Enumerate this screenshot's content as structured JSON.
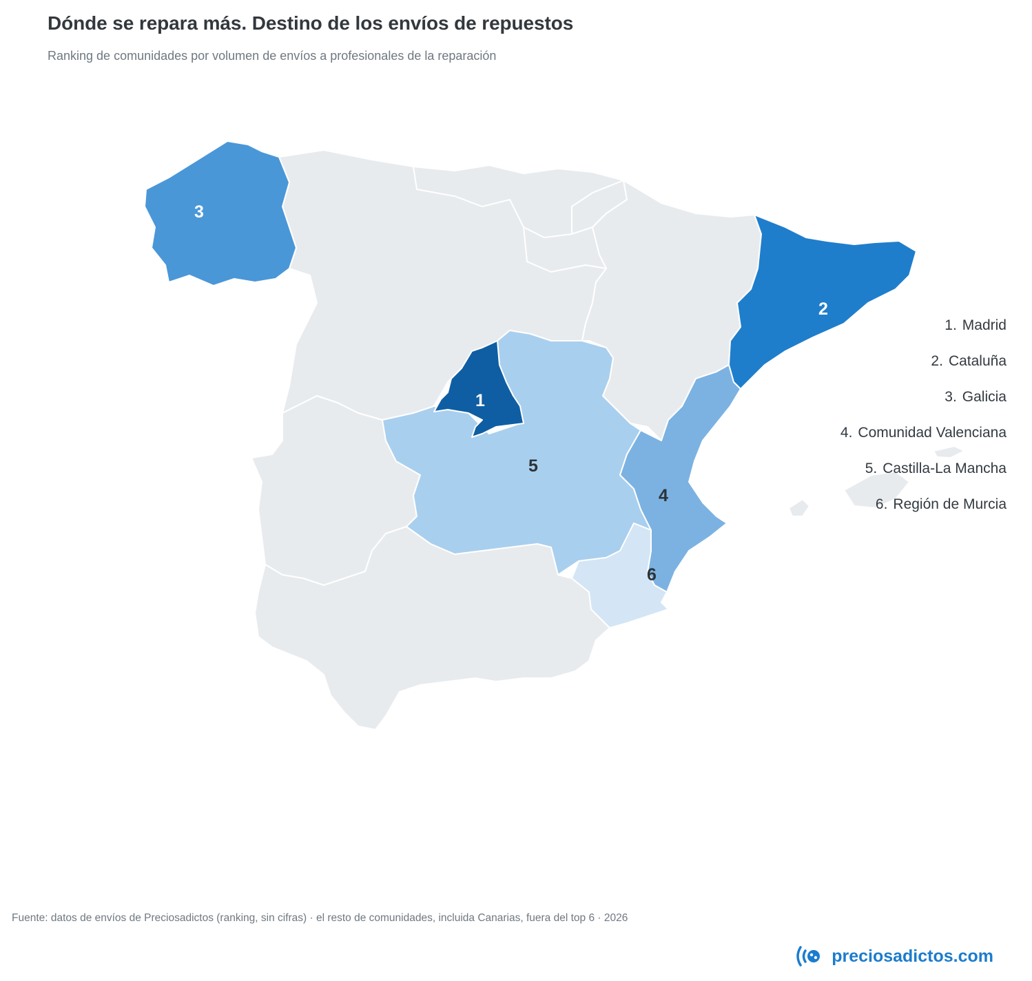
{
  "title": "Dónde se repara más. Destino de los envíos de repuestos",
  "subtitle": "Ranking de comunidades por volumen de envíos a profesionales de la reparación",
  "ranking": [
    {
      "rank": "1.",
      "name": "Madrid",
      "marker": "1",
      "color": "#0f5ea3"
    },
    {
      "rank": "2.",
      "name": "Cataluña",
      "marker": "2",
      "color": "#1f7ecb"
    },
    {
      "rank": "3.",
      "name": "Galicia",
      "marker": "3",
      "color": "#4a97d8"
    },
    {
      "rank": "4.",
      "name": "Comunidad Valenciana",
      "marker": "4",
      "color": "#7bb2e2"
    },
    {
      "rank": "5.",
      "name": "Castilla-La Mancha",
      "marker": "5",
      "color": "#a9cfee"
    },
    {
      "rank": "6.",
      "name": "Región de Murcia",
      "marker": "6",
      "color": "#d4e5f5"
    }
  ],
  "other_regions_color": "#e8ebee",
  "footer": "Fuente: datos de envíos de Preciosadictos (ranking, sin cifras) · el resto de comunidades, incluida Canarias, fuera del top 6 · 2026",
  "brand": {
    "text": "preciosadictos.com",
    "color": "#1c7ccd",
    "icon": "preciosadictos-logo-icon"
  }
}
